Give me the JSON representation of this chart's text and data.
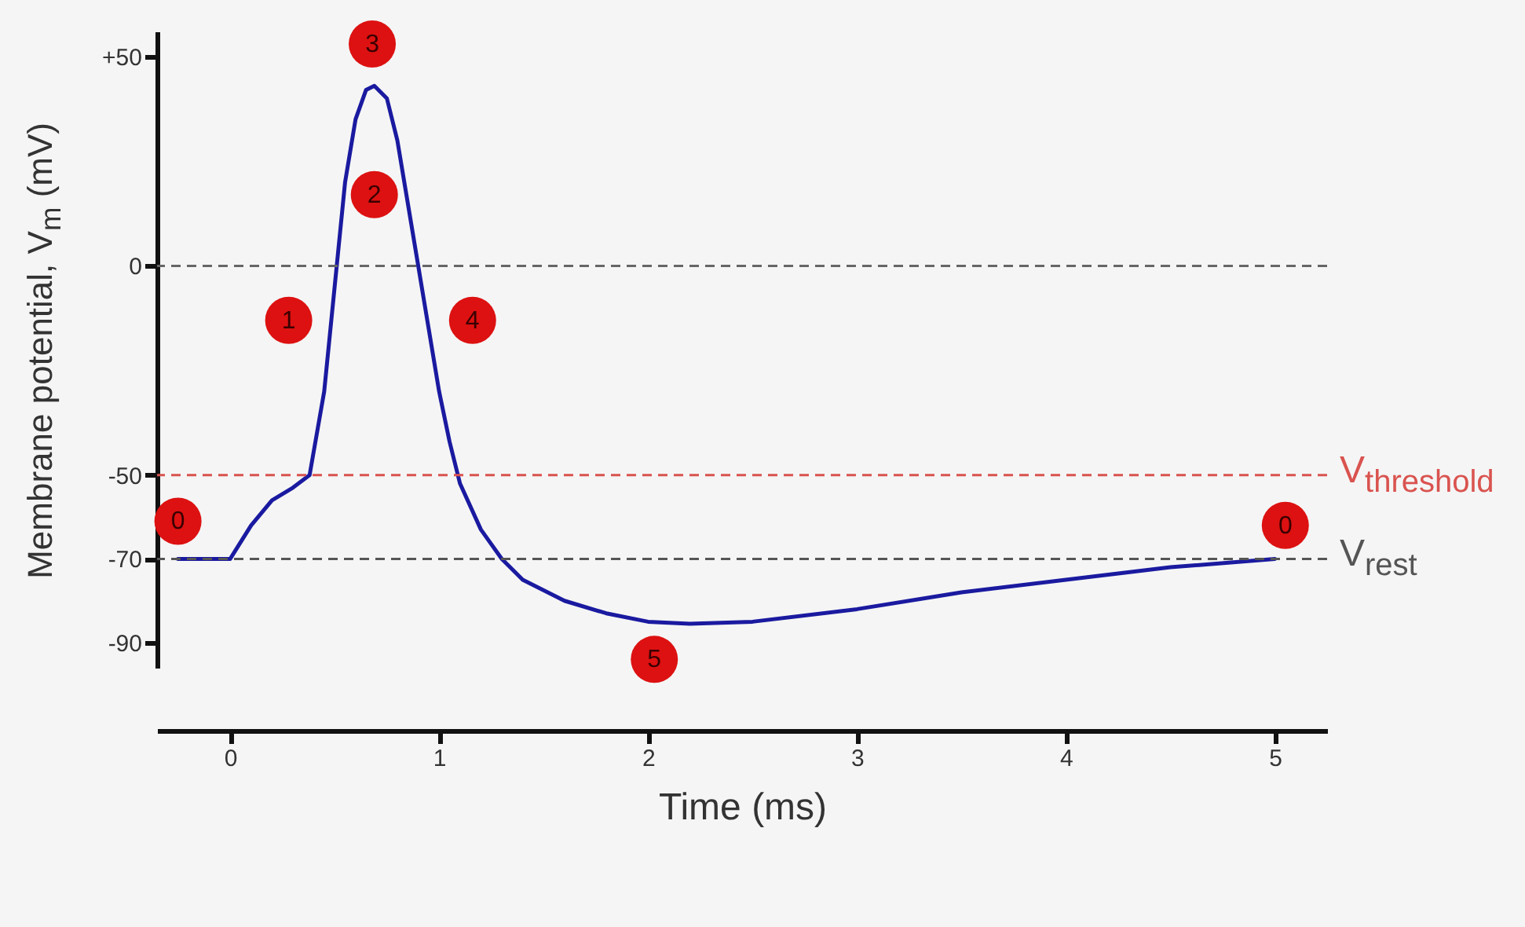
{
  "chart_data": {
    "type": "line",
    "xlabel": "Time (ms)",
    "ylabel": "Membrane potential, V$_{m}$ (mV)",
    "x": [
      -0.25,
      0,
      0.1,
      0.2,
      0.3,
      0.38,
      0.45,
      0.5,
      0.55,
      0.6,
      0.65,
      0.69,
      0.75,
      0.8,
      0.85,
      0.9,
      0.95,
      1.0,
      1.05,
      1.1,
      1.2,
      1.3,
      1.4,
      1.6,
      1.8,
      2.0,
      2.2,
      2.5,
      3.0,
      3.5,
      4.0,
      4.5,
      5.0
    ],
    "series": [
      {
        "color": "#1a1aa0",
        "values": [
          -70,
          -70,
          -62,
          -56,
          -53,
          -50,
          -30,
          -5,
          20,
          35,
          42,
          43,
          40,
          30,
          15,
          0,
          -15,
          -30,
          -42,
          -52,
          -63,
          -70,
          -75,
          -80,
          -83,
          -85,
          -85.5,
          -85,
          -82,
          -78,
          -75,
          -72,
          -70
        ]
      }
    ],
    "xlim": [
      -0.35,
      5.25
    ],
    "xticks": [
      0,
      1,
      2,
      3,
      4,
      5
    ],
    "ylim": [
      -96,
      56
    ],
    "yticks": [
      {
        "value": 50,
        "label": "+50"
      },
      0,
      -50,
      -70,
      -90
    ],
    "ref_lines": [
      {
        "axis": "y",
        "value": 0,
        "color": "#666666",
        "line_style": "dashed"
      },
      {
        "axis": "y",
        "value": -50,
        "label": "V$_{threshold}$",
        "color": "#d9534f",
        "line_style": "dashed"
      },
      {
        "axis": "y",
        "value": -70,
        "label": "V$_{rest}$",
        "color": "#555555",
        "line_style": "dashed"
      }
    ],
    "annotations": [
      {
        "text": "0",
        "x": -0.25,
        "y": -61
      },
      {
        "text": "1",
        "x": 0.28,
        "y": -13
      },
      {
        "text": "2",
        "x": 0.69,
        "y": 17
      },
      {
        "text": "3",
        "x": 0.68,
        "y": 53
      },
      {
        "text": "4",
        "x": 1.16,
        "y": -13
      },
      {
        "text": "5",
        "x": 2.03,
        "y": -94
      },
      {
        "text": "0",
        "x": 5.05,
        "y": -62
      }
    ],
    "grid": false,
    "marker": "none",
    "line_style": "solid"
  }
}
